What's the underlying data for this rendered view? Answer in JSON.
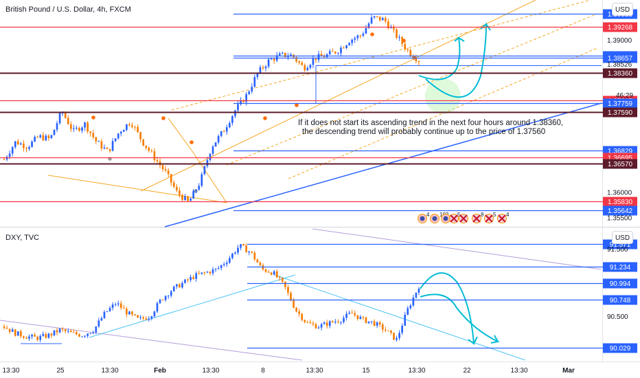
{
  "top_panel": {
    "title": "British Pound / U.S. Dollar, 4h, FXCM",
    "currency_button": "USD",
    "annotation_line1": "If it does not start its ascending trend in the next four hours around 1.38360,",
    "annotation_line2": "the descending trend will probably continue up to the price of 1.37560",
    "plain_ticks": [
      "1.39000",
      "1.38526",
      "46:29",
      "1.36000",
      "1.35500"
    ],
    "event_badges": [
      "4",
      "103",
      "5",
      "8",
      "5",
      "4"
    ],
    "colors": {
      "up": "#2962ff",
      "down": "#f57c00",
      "red_level": "#f23645",
      "dark_level": "#5d1a2a",
      "blue_level": "#2962ff",
      "channel": "#f5a623",
      "arrow": "#00bcd4"
    }
  },
  "bottom_panel": {
    "title": "DXY, TVC",
    "currency_button": "USD",
    "plain_ticks": [
      "91.500",
      "90.500"
    ]
  },
  "x_axis": {
    "labels": [
      "13:30",
      "25",
      "13:30",
      "Feb",
      "13:30",
      "8",
      "13:30",
      "15",
      "13:30",
      "22",
      "13:30",
      "Mar"
    ]
  },
  "chart_data": [
    {
      "type": "candlestick",
      "title": "British Pound / U.S. Dollar, 4h, FXCM",
      "y_unit": "USD",
      "ylim": [
        1.3535,
        1.3975
      ],
      "price_levels": [
        {
          "value": "1.39523",
          "style": "blue"
        },
        {
          "value": "1.39268",
          "style": "red"
        },
        {
          "value": "1.38690",
          "style": "blue"
        },
        {
          "value": "1.38657",
          "style": "blue"
        },
        {
          "value": "1.38360",
          "style": "dark"
        },
        {
          "value": "1.37817",
          "style": "red"
        },
        {
          "value": "1.37759",
          "style": "blue"
        },
        {
          "value": "1.37590",
          "style": "dark"
        },
        {
          "value": "1.36829",
          "style": "blue"
        },
        {
          "value": "1.36695",
          "style": "red"
        },
        {
          "value": "1.36570",
          "style": "dark"
        },
        {
          "value": "1.35830",
          "style": "red"
        },
        {
          "value": "1.35642",
          "style": "blue"
        }
      ],
      "close_path": [
        1.3665,
        1.37,
        1.369,
        1.371,
        1.3705,
        1.376,
        1.372,
        1.3735,
        1.37,
        1.368,
        1.372,
        1.374,
        1.37,
        1.367,
        1.364,
        1.36,
        1.358,
        1.362,
        1.369,
        1.372,
        1.376,
        1.379,
        1.3835,
        1.386,
        1.387,
        1.387,
        1.3845,
        1.3865,
        1.387,
        1.388,
        1.39,
        1.391,
        1.3945,
        1.394,
        1.391,
        1.388,
        1.386
      ]
    },
    {
      "type": "candlestick",
      "title": "DXY, TVC",
      "y_unit": "USD",
      "ylim": [
        89.85,
        91.8
      ],
      "price_levels": [
        {
          "value": "91.571",
          "style": "blue"
        },
        {
          "value": "91.234",
          "style": "blue"
        },
        {
          "value": "90.994",
          "style": "blue"
        },
        {
          "value": "90.748",
          "style": "blue"
        },
        {
          "value": "90.029",
          "style": "blue"
        }
      ],
      "close_path": [
        90.35,
        90.25,
        90.2,
        90.18,
        90.22,
        90.3,
        90.25,
        90.22,
        90.3,
        90.55,
        90.7,
        90.55,
        90.45,
        90.5,
        90.75,
        90.9,
        91.0,
        91.1,
        91.15,
        91.2,
        91.35,
        91.55,
        91.45,
        91.2,
        91.15,
        90.95,
        90.6,
        90.4,
        90.35,
        90.4,
        90.45,
        90.55,
        90.45,
        90.4,
        90.3,
        90.15,
        90.6,
        90.95
      ]
    }
  ]
}
